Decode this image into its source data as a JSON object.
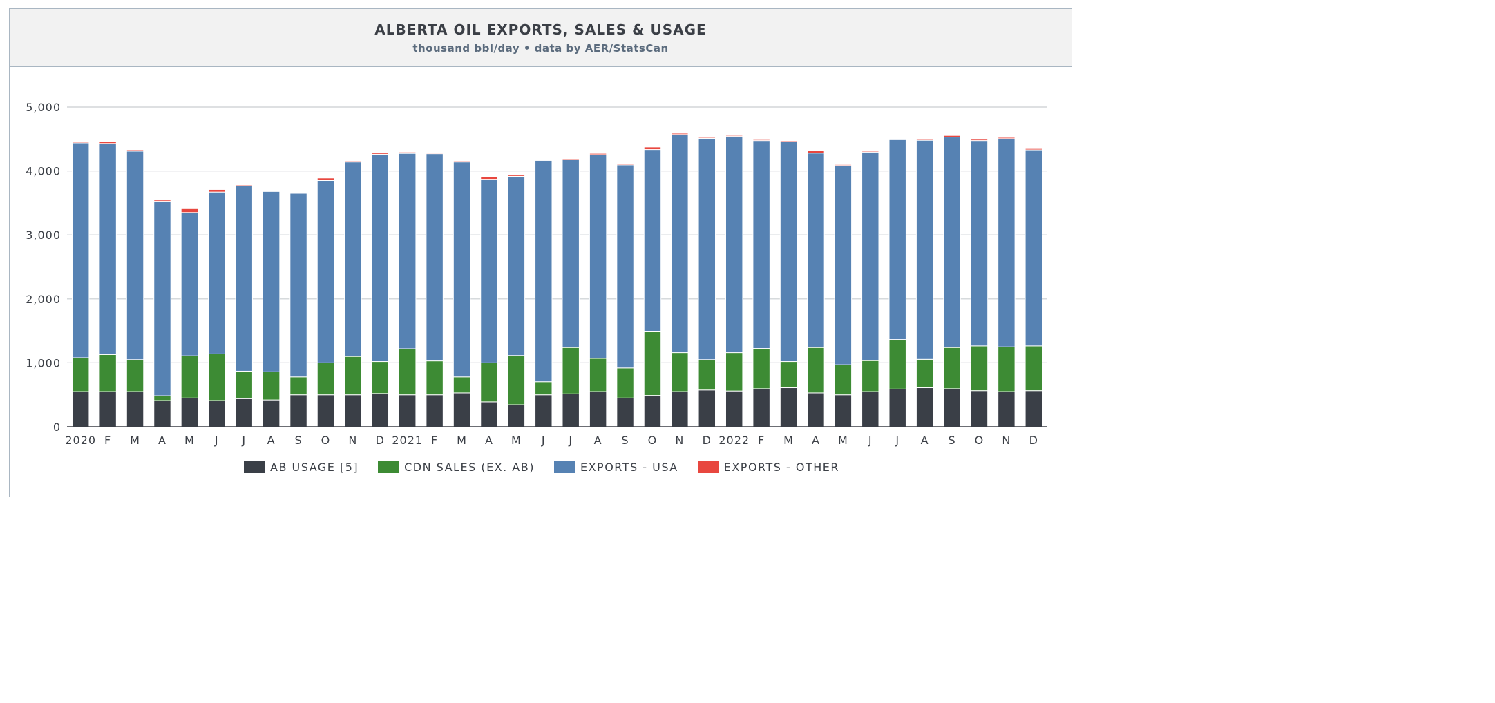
{
  "header": {
    "title": "ALBERTA OIL EXPORTS, SALES & USAGE",
    "subtitle": "thousand bbl/day • data by AER/StatsCan"
  },
  "colors": {
    "ab_usage": "#3a3f47",
    "cdn_sales": "#3d8b34",
    "exports_usa": "#5682b3",
    "exports_other": "#e8473f",
    "grid": "#c9cdd1",
    "axis": "#3b3f46"
  },
  "chart_data": {
    "type": "bar",
    "stacked": true,
    "title": "ALBERTA OIL EXPORTS, SALES & USAGE",
    "subtitle": "thousand bbl/day • data by AER/StatsCan",
    "xlabel": "",
    "ylabel": "",
    "ylim": [
      0,
      5000
    ],
    "yticks": [
      0,
      1000,
      2000,
      3000,
      4000,
      5000
    ],
    "ytick_labels": [
      "0",
      "1,000",
      "2,000",
      "3,000",
      "4,000",
      "5,000"
    ],
    "grid": true,
    "legend_position": "bottom",
    "categories": [
      "2020",
      "F",
      "M",
      "A",
      "M",
      "J",
      "J",
      "A",
      "S",
      "O",
      "N",
      "D",
      "2021",
      "F",
      "M",
      "A",
      "M",
      "J",
      "J",
      "A",
      "S",
      "O",
      "N",
      "D",
      "2022",
      "F",
      "M",
      "A",
      "M",
      "J",
      "J",
      "A",
      "S",
      "O",
      "N",
      "D"
    ],
    "series": [
      {
        "name": "AB USAGE [5]",
        "color_key": "ab_usage",
        "values": [
          550,
          550,
          550,
          410,
          450,
          410,
          440,
          420,
          500,
          500,
          500,
          520,
          500,
          500,
          530,
          390,
          345,
          500,
          515,
          550,
          450,
          490,
          550,
          575,
          560,
          595,
          610,
          530,
          500,
          550,
          590,
          610,
          595,
          565,
          550,
          565
        ]
      },
      {
        "name": "CDN SALES (EX. AB)",
        "color_key": "cdn_sales",
        "values": [
          530,
          580,
          500,
          75,
          660,
          730,
          430,
          440,
          280,
          500,
          600,
          500,
          720,
          530,
          250,
          610,
          770,
          205,
          725,
          520,
          470,
          995,
          610,
          475,
          600,
          630,
          410,
          710,
          470,
          485,
          775,
          445,
          645,
          700,
          700,
          700
        ]
      },
      {
        "name": "EXPORTS - USA",
        "color_key": "exports_usa",
        "values": [
          3360,
          3300,
          3260,
          3040,
          2240,
          2530,
          2900,
          2820,
          2870,
          2850,
          3040,
          3240,
          3055,
          3240,
          3360,
          2870,
          2800,
          3460,
          2940,
          3185,
          3175,
          2850,
          3410,
          3460,
          3380,
          3250,
          3440,
          3040,
          3115,
          3260,
          3125,
          3425,
          3290,
          3210,
          3255,
          3065
        ]
      },
      {
        "name": "EXPORTS - OTHER",
        "color_key": "exports_other",
        "values": [
          20,
          30,
          20,
          20,
          70,
          40,
          15,
          15,
          15,
          40,
          15,
          20,
          20,
          20,
          15,
          35,
          20,
          15,
          15,
          20,
          20,
          40,
          20,
          15,
          15,
          15,
          15,
          35,
          15,
          15,
          15,
          15,
          25,
          20,
          20,
          20
        ]
      }
    ]
  }
}
